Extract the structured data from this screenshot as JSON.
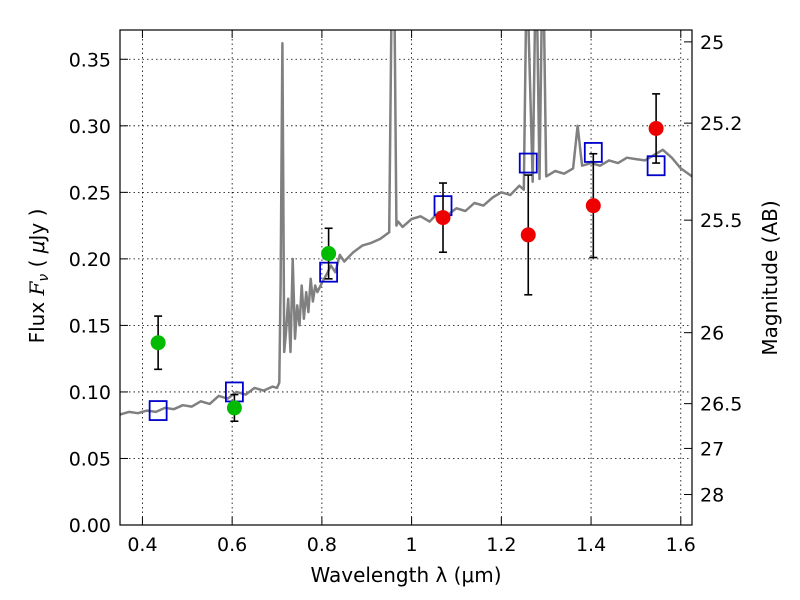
{
  "chart_data": {
    "type": "scatter",
    "xlabel": "Wavelength  λ (μm)",
    "ylabel": "Flux  F_ν  ( μJy )",
    "ylabel_right": "Magnitude (AB)",
    "xlim": [
      0.35,
      1.625
    ],
    "ylim": [
      0.0,
      0.372
    ],
    "grid": true,
    "x_ticks": [
      0.4,
      0.6,
      0.8,
      1.0,
      1.2,
      1.4,
      1.6
    ],
    "x_tick_labels": [
      "0.4",
      "0.6",
      "0.8",
      "1",
      "1.2",
      "1.4",
      "1.6"
    ],
    "y_ticks": [
      0.0,
      0.05,
      0.1,
      0.15,
      0.2,
      0.25,
      0.3,
      0.35
    ],
    "y_tick_labels": [
      "0.00",
      "0.05",
      "0.10",
      "0.15",
      "0.20",
      "0.25",
      "0.30",
      "0.35"
    ],
    "right_ticks": [
      {
        "label": "25",
        "mag": 25.0
      },
      {
        "label": "25.2",
        "mag": 25.2
      },
      {
        "label": "25.5",
        "mag": 25.5
      },
      {
        "label": "26",
        "mag": 26.0
      },
      {
        "label": "26.5",
        "mag": 26.5
      },
      {
        "label": "27",
        "mag": 27.0
      },
      {
        "label": "28",
        "mag": 28.0
      }
    ],
    "series": [
      {
        "marker": "line",
        "color": "#808080",
        "x": [
          0.35,
          0.37,
          0.39,
          0.41,
          0.43,
          0.45,
          0.47,
          0.49,
          0.51,
          0.53,
          0.55,
          0.57,
          0.59,
          0.61,
          0.63,
          0.65,
          0.67,
          0.69,
          0.7,
          0.705,
          0.708,
          0.712,
          0.714,
          0.716,
          0.72,
          0.725,
          0.73,
          0.735,
          0.74,
          0.745,
          0.75,
          0.755,
          0.76,
          0.765,
          0.77,
          0.775,
          0.78,
          0.785,
          0.79,
          0.8,
          0.81,
          0.82,
          0.83,
          0.84,
          0.85,
          0.87,
          0.89,
          0.91,
          0.93,
          0.95,
          0.955,
          0.958,
          0.962,
          0.966,
          0.97,
          0.98,
          1.0,
          1.02,
          1.04,
          1.06,
          1.08,
          1.1,
          1.12,
          1.14,
          1.16,
          1.18,
          1.2,
          1.22,
          1.24,
          1.25,
          1.255,
          1.26,
          1.27,
          1.275,
          1.28,
          1.285,
          1.29,
          1.295,
          1.3,
          1.32,
          1.34,
          1.36,
          1.37,
          1.38,
          1.4,
          1.42,
          1.44,
          1.46,
          1.48,
          1.5,
          1.52,
          1.54,
          1.56,
          1.58,
          1.6,
          1.625
        ],
        "y": [
          0.083,
          0.085,
          0.084,
          0.086,
          0.085,
          0.088,
          0.087,
          0.09,
          0.089,
          0.093,
          0.091,
          0.097,
          0.095,
          0.1,
          0.098,
          0.103,
          0.101,
          0.104,
          0.103,
          0.107,
          0.18,
          0.362,
          0.25,
          0.13,
          0.145,
          0.17,
          0.13,
          0.2,
          0.14,
          0.165,
          0.15,
          0.18,
          0.155,
          0.175,
          0.16,
          0.185,
          0.168,
          0.18,
          0.175,
          0.182,
          0.188,
          0.195,
          0.19,
          0.203,
          0.198,
          0.205,
          0.21,
          0.212,
          0.215,
          0.22,
          0.38,
          0.38,
          0.38,
          0.225,
          0.228,
          0.224,
          0.23,
          0.232,
          0.228,
          0.235,
          0.233,
          0.238,
          0.236,
          0.242,
          0.24,
          0.246,
          0.25,
          0.248,
          0.255,
          0.252,
          0.38,
          0.38,
          0.258,
          0.38,
          0.38,
          0.26,
          0.38,
          0.38,
          0.262,
          0.266,
          0.264,
          0.268,
          0.3,
          0.27,
          0.272,
          0.27,
          0.274,
          0.272,
          0.276,
          0.275,
          0.274,
          0.278,
          0.282,
          0.276,
          0.268,
          0.262
        ]
      },
      {
        "marker": "square",
        "color": "#0000cc",
        "x": [
          0.435,
          0.605,
          0.815,
          1.07,
          1.26,
          1.405,
          1.545
        ],
        "y": [
          0.086,
          0.1,
          0.19,
          0.24,
          0.272,
          0.28,
          0.27
        ]
      },
      {
        "marker": "circle",
        "color": "#00bb00",
        "x": [
          0.435,
          0.605,
          0.815
        ],
        "y": [
          0.137,
          0.088,
          0.204
        ],
        "yerr": [
          0.02,
          0.01,
          0.019
        ]
      },
      {
        "marker": "circle",
        "color": "#ee0000",
        "x": [
          1.07,
          1.26,
          1.405,
          1.545
        ],
        "y": [
          0.231,
          0.218,
          0.24,
          0.298
        ],
        "yerr": [
          0.026,
          0.045,
          0.039,
          0.026
        ]
      }
    ]
  }
}
